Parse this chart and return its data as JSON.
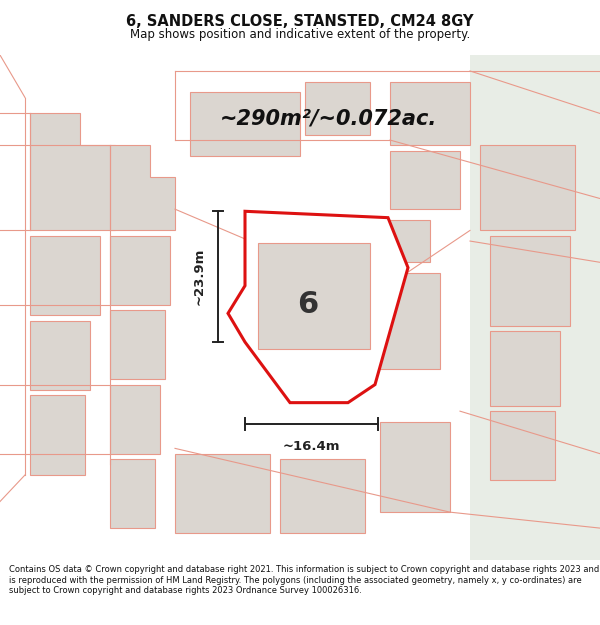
{
  "title": "6, SANDERS CLOSE, STANSTED, CM24 8GY",
  "subtitle": "Map shows position and indicative extent of the property.",
  "area_text": "~290m²/~0.072ac.",
  "width_label": "~16.4m",
  "height_label": "~23.9m",
  "plot_number": "6",
  "footer": "Contains OS data © Crown copyright and database right 2021. This information is subject to Crown copyright and database rights 2023 and is reproduced with the permission of HM Land Registry. The polygons (including the associated geometry, namely x, y co-ordinates) are subject to Crown copyright and database rights 2023 Ordnance Survey 100026316.",
  "bg_color": "#f5f3f1",
  "map_bg": "#f5f3f1",
  "plot_fill": "#f5f3f1",
  "plot_edge_color": "#dd1111",
  "building_fill": "#dbd6d0",
  "building_edge_color": "#e8998a",
  "road_color": "#e8998a",
  "dimension_color": "#222222",
  "title_color": "#111111",
  "footer_color": "#111111",
  "white": "#ffffff",
  "right_bg": "#e8ede8"
}
